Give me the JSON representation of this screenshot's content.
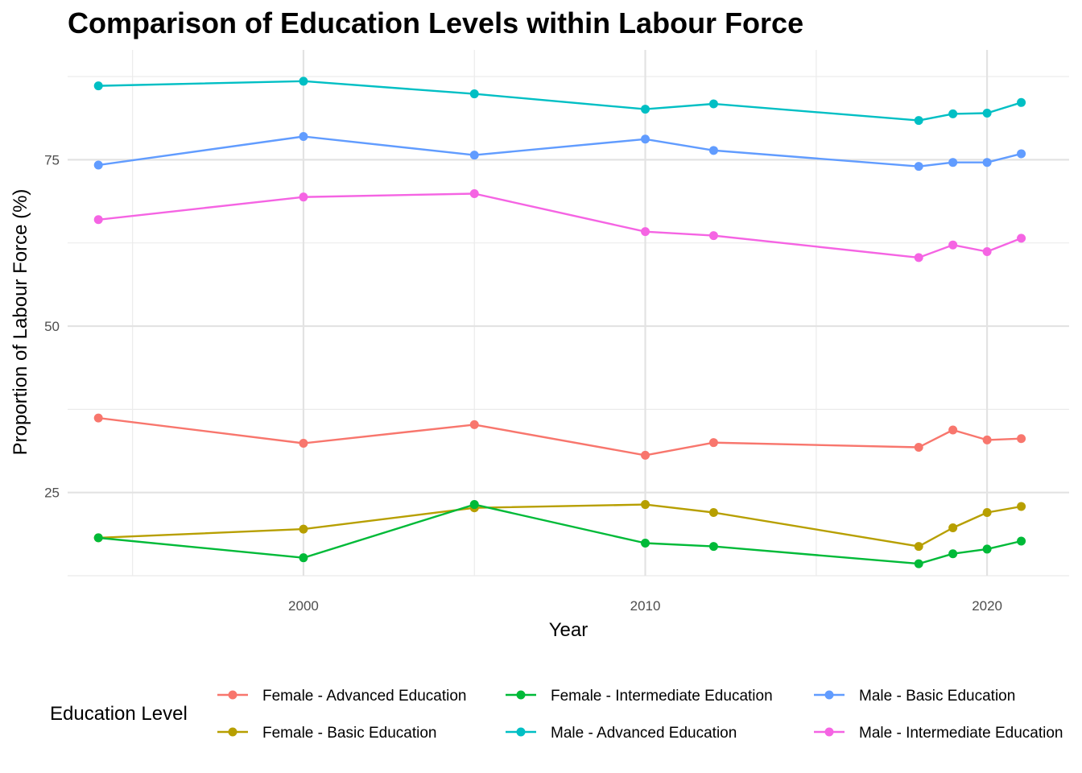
{
  "chart_data": {
    "type": "line",
    "title": "Comparison of Education Levels within Labour Force",
    "xlabel": "Year",
    "ylabel": "Proportion of Labour Force (%)",
    "xlim": [
      1993.1,
      2022.4
    ],
    "ylim": [
      12.5,
      91.5
    ],
    "xticks": [
      2000,
      2010,
      2020
    ],
    "yticks": [
      25,
      50,
      75
    ],
    "grid": true,
    "legend": {
      "title": "Education Level",
      "position": "bottom",
      "columns": 3
    },
    "series": [
      {
        "name": "Female - Advanced Education",
        "color": "#F8766D",
        "x": [
          1994,
          2000,
          2005,
          2010,
          2012,
          2018,
          2019,
          2020,
          2021
        ],
        "values": [
          36.2,
          32.4,
          35.2,
          30.6,
          32.5,
          31.8,
          34.4,
          32.9,
          33.1
        ]
      },
      {
        "name": "Female - Basic Education",
        "color": "#B79F00",
        "x": [
          1994,
          2000,
          2005,
          2010,
          2012,
          2018,
          2019,
          2020,
          2021
        ],
        "values": [
          18.2,
          19.5,
          22.7,
          23.2,
          22.0,
          16.9,
          19.7,
          22.0,
          22.9
        ]
      },
      {
        "name": "Female - Intermediate Education",
        "color": "#00BA38",
        "x": [
          1994,
          2000,
          2005,
          2010,
          2012,
          2018,
          2019,
          2020,
          2021
        ],
        "values": [
          18.2,
          15.2,
          23.2,
          17.4,
          16.9,
          14.3,
          15.8,
          16.5,
          17.7
        ]
      },
      {
        "name": "Male - Advanced Education",
        "color": "#00BFC4",
        "x": [
          1994,
          2000,
          2005,
          2010,
          2012,
          2018,
          2019,
          2020,
          2021
        ],
        "values": [
          86.1,
          86.8,
          84.9,
          82.6,
          83.4,
          80.9,
          81.9,
          82.0,
          83.6
        ]
      },
      {
        "name": "Male - Basic Education",
        "color": "#619CFF",
        "x": [
          1994,
          2000,
          2005,
          2010,
          2012,
          2018,
          2019,
          2020,
          2021
        ],
        "values": [
          74.2,
          78.5,
          75.7,
          78.1,
          76.4,
          74.0,
          74.6,
          74.6,
          75.9
        ]
      },
      {
        "name": "Male - Intermediate Education",
        "color": "#F564E3",
        "x": [
          1994,
          2000,
          2005,
          2010,
          2012,
          2018,
          2019,
          2020,
          2021
        ],
        "values": [
          66.0,
          69.4,
          69.9,
          64.2,
          63.6,
          60.3,
          62.2,
          61.2,
          63.2
        ]
      }
    ]
  }
}
